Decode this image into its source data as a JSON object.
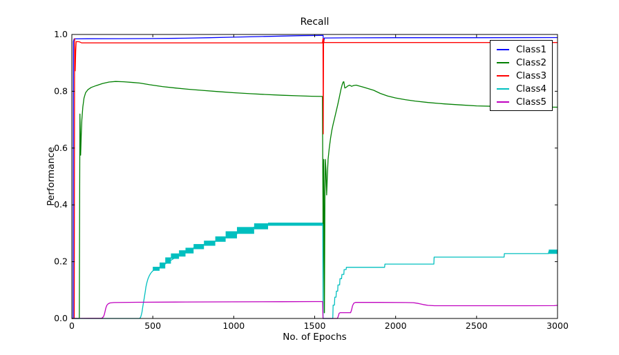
{
  "figure": {
    "background": "#ffffff",
    "plot_background": "#ffffff",
    "spine_color": "#000000"
  },
  "chart_data": {
    "type": "line",
    "title": "Recall",
    "xlabel": "No. of Epochs",
    "ylabel": "Performance",
    "xlim": [
      0,
      3000
    ],
    "ylim": [
      0.0,
      1.0
    ],
    "xticks": [
      "0",
      "500",
      "1000",
      "1500",
      "2000",
      "2500",
      "3000"
    ],
    "yticks": [
      "0.0",
      "0.2",
      "0.4",
      "0.6",
      "0.8",
      "1.0"
    ],
    "grid": false,
    "legend": {
      "position": "upper right",
      "border_color": "#000000",
      "background": "#ffffff"
    },
    "series": [
      {
        "name": "Class1",
        "color": "#0000ff",
        "linewidth": 1.3,
        "points": [
          [
            0,
            0
          ],
          [
            8,
            0.001
          ],
          [
            10,
            0.975
          ],
          [
            14,
            0.9845
          ],
          [
            100,
            0.985
          ],
          [
            300,
            0.9853
          ],
          [
            500,
            0.9857
          ],
          [
            700,
            0.9868
          ],
          [
            850,
            0.9885
          ],
          [
            1000,
            0.9905
          ],
          [
            1150,
            0.9925
          ],
          [
            1300,
            0.9945
          ],
          [
            1420,
            0.9958
          ],
          [
            1548,
            0.9966
          ],
          [
            1552,
            0.9966
          ],
          [
            1554,
            0.965
          ],
          [
            1557,
            0.978
          ],
          [
            1560,
            0.9875
          ],
          [
            1700,
            0.988
          ],
          [
            2000,
            0.9885
          ],
          [
            2500,
            0.9885
          ],
          [
            3000,
            0.989
          ]
        ]
      },
      {
        "name": "Class2",
        "color": "#007f00",
        "linewidth": 1.3,
        "points": [
          [
            0,
            0
          ],
          [
            44,
            0
          ],
          [
            46,
            0.002
          ],
          [
            48,
            0.35
          ],
          [
            50,
            0.72
          ],
          [
            52,
            0.655
          ],
          [
            54,
            0.575
          ],
          [
            56,
            0.605
          ],
          [
            58,
            0.645
          ],
          [
            62,
            0.7
          ],
          [
            68,
            0.745
          ],
          [
            75,
            0.776
          ],
          [
            85,
            0.795
          ],
          [
            100,
            0.806
          ],
          [
            120,
            0.8135
          ],
          [
            150,
            0.82
          ],
          [
            190,
            0.8275
          ],
          [
            230,
            0.8325
          ],
          [
            270,
            0.8345
          ],
          [
            320,
            0.8335
          ],
          [
            380,
            0.8308
          ],
          [
            420,
            0.8288
          ],
          [
            480,
            0.823
          ],
          [
            560,
            0.8165
          ],
          [
            640,
            0.8115
          ],
          [
            720,
            0.807
          ],
          [
            800,
            0.8035
          ],
          [
            900,
            0.799
          ],
          [
            1000,
            0.795
          ],
          [
            1100,
            0.7915
          ],
          [
            1200,
            0.7885
          ],
          [
            1300,
            0.786
          ],
          [
            1400,
            0.784
          ],
          [
            1480,
            0.7825
          ],
          [
            1548,
            0.7818
          ],
          [
            1551,
            0.4
          ],
          [
            1552,
            0.02
          ],
          [
            1554,
            0.45
          ],
          [
            1556,
            0.56
          ],
          [
            1558,
            0.3
          ],
          [
            1560,
            0.02
          ],
          [
            1563,
            0.43
          ],
          [
            1566,
            0.56
          ],
          [
            1570,
            0.52
          ],
          [
            1574,
            0.435
          ],
          [
            1578,
            0.5
          ],
          [
            1583,
            0.56
          ],
          [
            1590,
            0.6
          ],
          [
            1598,
            0.635
          ],
          [
            1606,
            0.662
          ],
          [
            1614,
            0.684
          ],
          [
            1622,
            0.703
          ],
          [
            1632,
            0.727
          ],
          [
            1642,
            0.752
          ],
          [
            1652,
            0.778
          ],
          [
            1662,
            0.806
          ],
          [
            1670,
            0.823
          ],
          [
            1676,
            0.8325
          ],
          [
            1680,
            0.8335
          ],
          [
            1686,
            0.8115
          ],
          [
            1694,
            0.8135
          ],
          [
            1704,
            0.8185
          ],
          [
            1716,
            0.8215
          ],
          [
            1728,
            0.8175
          ],
          [
            1742,
            0.8205
          ],
          [
            1756,
            0.8215
          ],
          [
            1775,
            0.8185
          ],
          [
            1800,
            0.8145
          ],
          [
            1830,
            0.8095
          ],
          [
            1865,
            0.8035
          ],
          [
            1905,
            0.7925
          ],
          [
            1950,
            0.7835
          ],
          [
            2000,
            0.7765
          ],
          [
            2060,
            0.7705
          ],
          [
            2120,
            0.7655
          ],
          [
            2200,
            0.7605
          ],
          [
            2300,
            0.7555
          ],
          [
            2400,
            0.752
          ],
          [
            2500,
            0.7485
          ],
          [
            2600,
            0.747
          ],
          [
            2750,
            0.7455
          ],
          [
            2900,
            0.7445
          ],
          [
            3000,
            0.744
          ]
        ]
      },
      {
        "name": "Class3",
        "color": "#ff0000",
        "linewidth": 1.3,
        "points": [
          [
            0,
            0
          ],
          [
            15,
            0.001
          ],
          [
            17,
            0.985
          ],
          [
            19,
            0.93
          ],
          [
            21,
            0.872
          ],
          [
            24,
            0.94
          ],
          [
            27,
            0.975
          ],
          [
            45,
            0.9745
          ],
          [
            60,
            0.9705
          ],
          [
            500,
            0.9705
          ],
          [
            1000,
            0.9705
          ],
          [
            1548,
            0.9705
          ],
          [
            1551,
            0.985
          ],
          [
            1553,
            0.65
          ],
          [
            1555,
            0.985
          ],
          [
            1558,
            0.9715
          ],
          [
            2000,
            0.9715
          ],
          [
            2500,
            0.9715
          ],
          [
            3000,
            0.9715
          ]
        ]
      },
      {
        "name": "Class4",
        "color": "#00bfbf",
        "linewidth": 1.3,
        "points": [
          [
            0,
            0
          ],
          [
            418,
            0
          ],
          [
            424,
            0.004
          ],
          [
            428,
            0.01
          ],
          [
            433,
            0.022
          ],
          [
            438,
            0.04
          ],
          [
            443,
            0.058
          ],
          [
            448,
            0.075
          ],
          [
            453,
            0.094
          ],
          [
            458,
            0.112
          ],
          [
            464,
            0.127
          ],
          [
            470,
            0.139
          ],
          [
            478,
            0.15
          ],
          [
            487,
            0.159
          ],
          [
            497,
            0.166
          ],
          [
            508,
            0.171
          ],
          [
            520,
            0.1735
          ],
          [
            560,
            0.186
          ],
          [
            610,
            0.204
          ],
          [
            660,
            0.222
          ],
          [
            710,
            0.238
          ],
          [
            770,
            0.253
          ],
          [
            850,
            0.264
          ],
          [
            930,
            0.281
          ],
          [
            1010,
            0.296
          ],
          [
            1100,
            0.318
          ],
          [
            1180,
            0.328
          ],
          [
            1300,
            0.332
          ],
          [
            1450,
            0.332
          ],
          [
            1550,
            0.332
          ],
          [
            1552,
            0
          ],
          [
            1612,
            0
          ],
          [
            1614,
            0.047
          ],
          [
            1622,
            0.047
          ],
          [
            1624,
            0.075
          ],
          [
            1632,
            0.075
          ],
          [
            1634,
            0.096
          ],
          [
            1642,
            0.096
          ],
          [
            1644,
            0.118
          ],
          [
            1654,
            0.118
          ],
          [
            1656,
            0.14
          ],
          [
            1666,
            0.14
          ],
          [
            1668,
            0.155
          ],
          [
            1680,
            0.155
          ],
          [
            1682,
            0.172
          ],
          [
            1694,
            0.172
          ],
          [
            1696,
            0.18
          ],
          [
            1932,
            0.18
          ],
          [
            1934,
            0.1915
          ],
          [
            2236,
            0.1915
          ],
          [
            2238,
            0.216
          ],
          [
            2670,
            0.216
          ],
          [
            2672,
            0.2285
          ],
          [
            2944,
            0.2285
          ],
          [
            2946,
            0.235
          ],
          [
            3000,
            0.235
          ]
        ],
        "noise_band_blocks": [
          [
            500,
            542,
            0.168,
            0.182
          ],
          [
            542,
            577,
            0.176,
            0.197
          ],
          [
            577,
            612,
            0.193,
            0.215
          ],
          [
            612,
            662,
            0.21,
            0.229
          ],
          [
            662,
            702,
            0.218,
            0.24
          ],
          [
            702,
            752,
            0.229,
            0.249
          ],
          [
            752,
            816,
            0.244,
            0.262
          ],
          [
            816,
            886,
            0.256,
            0.274
          ],
          [
            886,
            950,
            0.27,
            0.289
          ],
          [
            950,
            1020,
            0.282,
            0.307
          ],
          [
            1020,
            1126,
            0.298,
            0.322
          ],
          [
            1126,
            1212,
            0.314,
            0.335
          ],
          [
            1212,
            1552,
            0.3265,
            0.3375
          ],
          [
            2946,
            3000,
            0.2275,
            0.2425
          ]
        ]
      },
      {
        "name": "Class5",
        "color": "#bf00bf",
        "linewidth": 1.3,
        "points": [
          [
            0,
            0
          ],
          [
            185,
            0.001
          ],
          [
            195,
            0.006
          ],
          [
            200,
            0.013
          ],
          [
            205,
            0.024
          ],
          [
            210,
            0.037
          ],
          [
            216,
            0.046
          ],
          [
            224,
            0.0515
          ],
          [
            235,
            0.0545
          ],
          [
            260,
            0.056
          ],
          [
            400,
            0.057
          ],
          [
            700,
            0.058
          ],
          [
            1000,
            0.0585
          ],
          [
            1300,
            0.059
          ],
          [
            1500,
            0.0595
          ],
          [
            1549,
            0.0595
          ],
          [
            1551,
            0
          ],
          [
            1640,
            0
          ],
          [
            1646,
            0.008
          ],
          [
            1651,
            0.0185
          ],
          [
            1658,
            0.0205
          ],
          [
            1722,
            0.0205
          ],
          [
            1728,
            0.03
          ],
          [
            1734,
            0.045
          ],
          [
            1742,
            0.054
          ],
          [
            1752,
            0.0565
          ],
          [
            1900,
            0.0565
          ],
          [
            2060,
            0.056
          ],
          [
            2110,
            0.0555
          ],
          [
            2140,
            0.053
          ],
          [
            2170,
            0.049
          ],
          [
            2200,
            0.046
          ],
          [
            2240,
            0.0448
          ],
          [
            2500,
            0.0448
          ],
          [
            2800,
            0.0448
          ],
          [
            2980,
            0.0452
          ],
          [
            3000,
            0.0462
          ]
        ]
      }
    ]
  }
}
